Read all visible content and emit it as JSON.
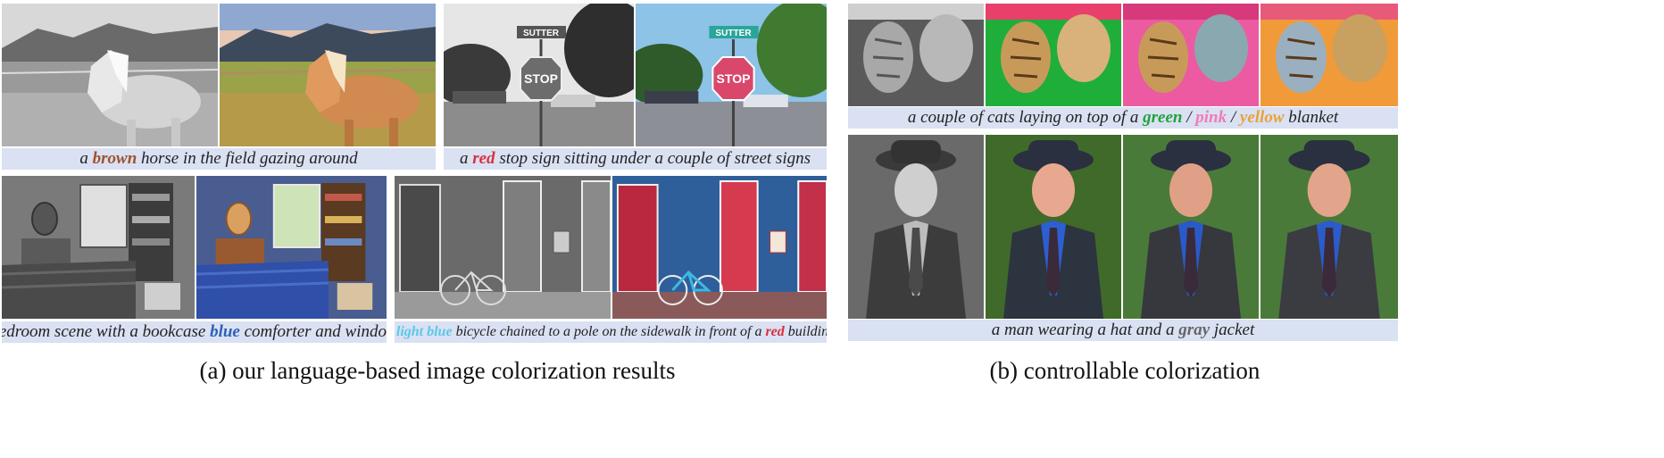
{
  "colors": {
    "caption_bg": "#d9e1f2",
    "brown": "#a0522d",
    "red": "#d9303f",
    "blue": "#2e5fb8",
    "light_blue": "#5bc8e8",
    "green": "#22a33a",
    "pink": "#f27bb7",
    "yellow": "#e9a23b",
    "gray": "#666666"
  },
  "captions": {
    "horse": [
      "a ",
      "brown",
      " horse in the field gazing around"
    ],
    "stop": [
      "a ",
      "red",
      " stop sign sitting under a couple of street signs"
    ],
    "bedroom": [
      "bedroom scene with a bookcase ",
      "blue",
      " comforter and window"
    ],
    "bicycle": [
      "a ",
      "light blue",
      " bicycle chained to a pole on the sidewalk in front of a ",
      "red",
      " building"
    ],
    "cats": [
      "a couple of cats laying on top of a ",
      "green",
      " / ",
      "pink",
      " / ",
      "yellow",
      " blanket"
    ],
    "man": [
      "a man wearing a hat and a ",
      "gray",
      " jacket"
    ]
  },
  "street_sign_text": "SUTTER",
  "stop_text": "STOP",
  "subcaptions": {
    "a": "(a) our language-based image colorization results",
    "b": "(b) controllable colorization"
  }
}
